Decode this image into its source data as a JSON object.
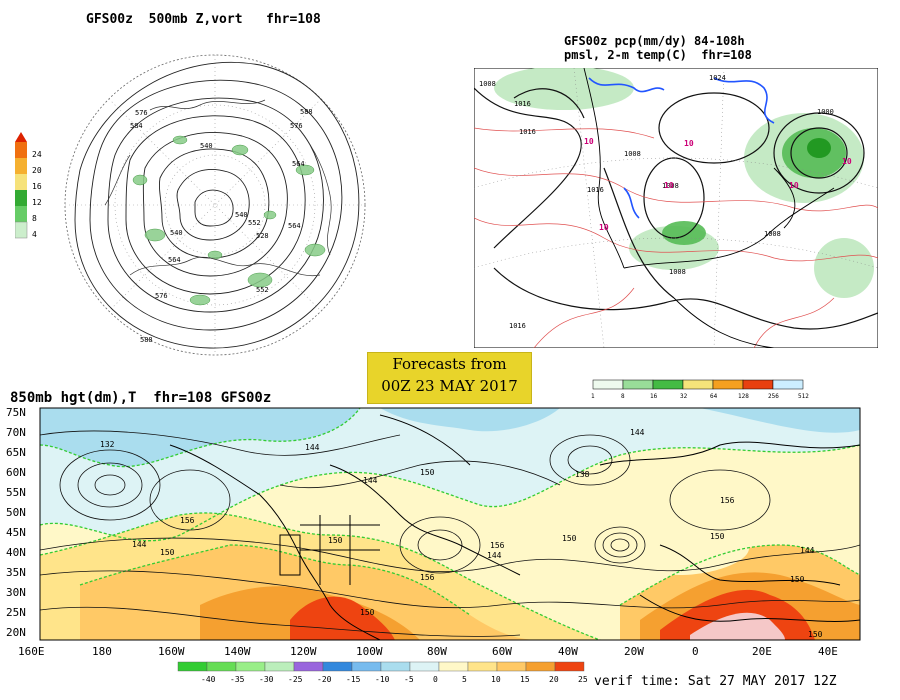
{
  "panel_500mb": {
    "title": "GFS00z  500mb Z,vort   fhr=108",
    "colorbar_ticks": [
      "24",
      "20",
      "16",
      "12",
      "8",
      "4"
    ],
    "contour_labels": [
      "576",
      "584",
      "540",
      "564",
      "588",
      "576",
      "540",
      "552",
      "564",
      "576",
      "588",
      "564",
      "528",
      "552",
      "540"
    ]
  },
  "panel_precip": {
    "title_line1": "GFS00z pcp(mm/dy) 84-108h",
    "title_line2": "pmsl, 2-m temp(C)  fhr=108",
    "pressure_labels": [
      "1008",
      "1016",
      "1024",
      "1016",
      "1008",
      "1008",
      "1016",
      "1008",
      "1016",
      "1000",
      "1008"
    ],
    "temp_labels": [
      "10",
      "10",
      "10",
      "10",
      "10",
      "10"
    ],
    "colorbar_ticks": [
      "1",
      "8",
      "16",
      "32",
      "64",
      "128",
      "256",
      "512"
    ]
  },
  "banner": {
    "line1": "Forecasts from",
    "line2": "00Z 23 MAY 2017"
  },
  "panel_850mb": {
    "title": "850mb hgt(dm),T  fhr=108 GFS00z",
    "lat_labels": [
      "75N",
      "70N",
      "65N",
      "60N",
      "55N",
      "50N",
      "45N",
      "40N",
      "35N",
      "30N",
      "25N",
      "20N"
    ],
    "lon_labels": [
      "160E",
      "180",
      "160W",
      "140W",
      "120W",
      "100W",
      "80W",
      "60W",
      "40W",
      "20W",
      "0",
      "20E",
      "40E"
    ],
    "contour_labels": [
      "132",
      "144",
      "150",
      "144",
      "150",
      "156",
      "144",
      "150",
      "144",
      "138",
      "150",
      "156",
      "150",
      "144",
      "150",
      "156",
      "150",
      "156",
      "144",
      "150"
    ],
    "colorbar_ticks": [
      "-40",
      "-35",
      "-30",
      "-25",
      "-20",
      "-15",
      "-10",
      "-5",
      "0",
      "5",
      "10",
      "15",
      "20",
      "25"
    ],
    "temp_colors": [
      "#33cc33",
      "#66dd55",
      "#99ee88",
      "#bbeebb",
      "#9966dd",
      "#3388dd",
      "#77bbee",
      "#aaddee",
      "#ddf3f5",
      "#fff8c8",
      "#ffe48a",
      "#ffc966",
      "#f5a030",
      "#ee4411"
    ]
  },
  "verif_time": "verif time: Sat 27 MAY 2017 12Z"
}
